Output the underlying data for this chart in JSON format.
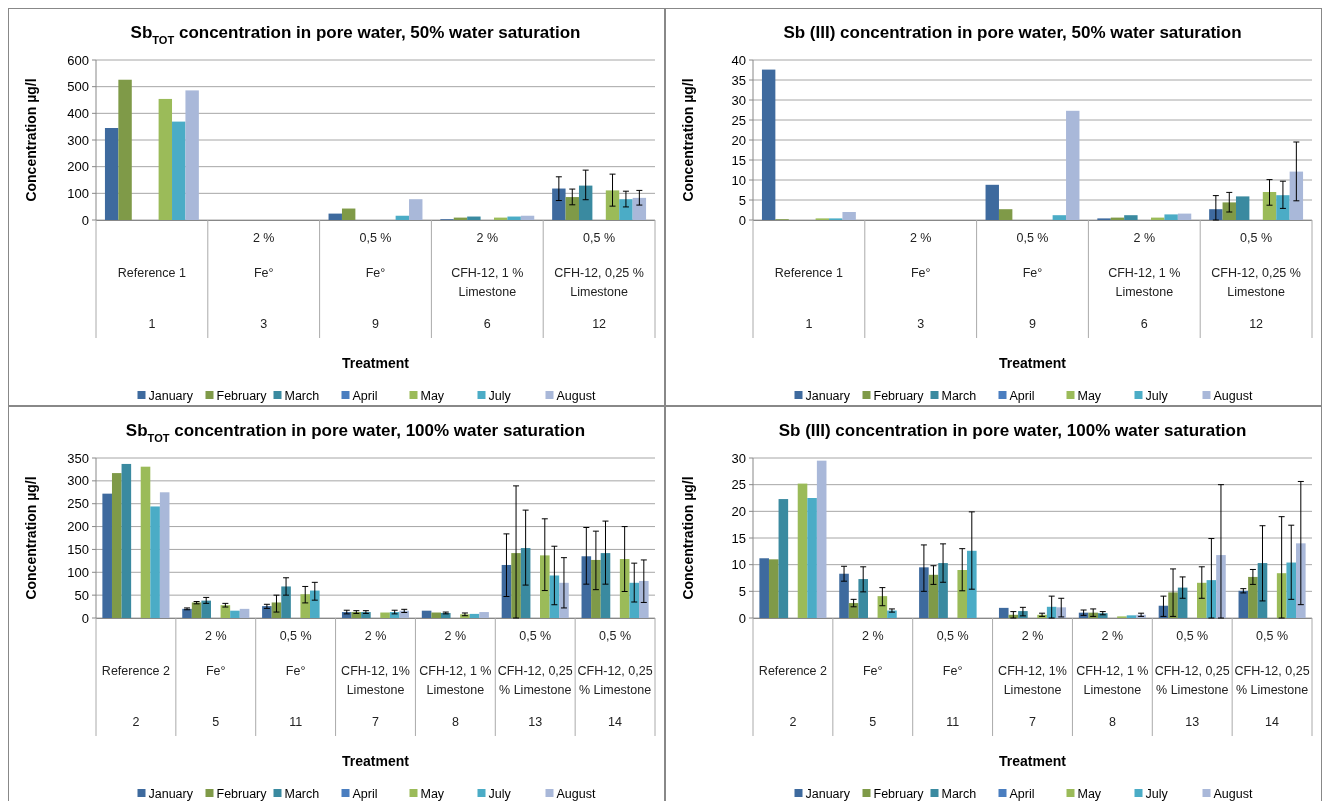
{
  "chart_data": [
    {
      "type": "bar",
      "title": "Sb$_{TOT}$ concentration in pore water, 50% water saturation",
      "xlabel": "Treatment",
      "ylabel": "Concentration µg/l",
      "categories": [
        "Reference 1\n1",
        "2 %\nFe°\n3",
        "0,5 %\nFe°\n9",
        "2 %\nCFH-12, 1 % Limestone\n6",
        "0,5 %\nCFH-12, 0,25 % Limestone\n12"
      ],
      "ylim": [
        0,
        600
      ],
      "yticks": [
        0,
        100,
        200,
        300,
        400,
        500,
        600
      ],
      "grid": "y",
      "legend": "bottom",
      "series": [
        {
          "name": "January",
          "color": "#3e6a9e",
          "values": [
            345,
            null,
            24,
            3,
            118
          ],
          "errors": [
            null,
            null,
            null,
            null,
            [
              73,
              162
            ]
          ]
        },
        {
          "name": "February",
          "color": "#7f9a48",
          "values": [
            526,
            null,
            43,
            9,
            86
          ],
          "errors": [
            null,
            null,
            null,
            null,
            [
              57,
              116
            ]
          ]
        },
        {
          "name": "March",
          "color": "#3a8aa0",
          "values": [
            null,
            null,
            null,
            13,
            129
          ],
          "errors": [
            null,
            null,
            null,
            null,
            [
              76,
              187
            ]
          ]
        },
        {
          "name": "April",
          "color": "#4a7ec0",
          "values": [
            null,
            null,
            null,
            null,
            null
          ]
        },
        {
          "name": "May",
          "color": "#9bbb59",
          "values": [
            454,
            null,
            null,
            9,
            111
          ],
          "errors": [
            null,
            null,
            null,
            null,
            [
              52,
              172
            ]
          ]
        },
        {
          "name": "July",
          "color": "#4bacc6",
          "values": [
            369,
            null,
            16,
            13,
            78
          ],
          "errors": [
            null,
            null,
            null,
            null,
            [
              49,
              108
            ]
          ]
        },
        {
          "name": "August",
          "color": "#a9b8d9",
          "values": [
            486,
            null,
            78,
            16,
            83
          ],
          "errors": [
            null,
            null,
            null,
            null,
            [
              56,
              111
            ]
          ]
        }
      ]
    },
    {
      "type": "bar",
      "title": "Sb (III) concentration in pore water, 50% water saturation",
      "xlabel": "Treatment",
      "ylabel": "Concentration µg/l",
      "categories": [
        "Reference 1\n1",
        "2 %\nFe°\n3",
        "0,5 %\nFe°\n9",
        "2 %\nCFH-12, 1 % Limestone\n6",
        "0,5 %\nCFH-12, 0,25 % Limestone\n12"
      ],
      "ylim": [
        0,
        40
      ],
      "yticks": [
        0,
        5,
        10,
        15,
        20,
        25,
        30,
        35,
        40
      ],
      "grid": "y",
      "legend": "bottom",
      "series": [
        {
          "name": "January",
          "color": "#3e6a9e",
          "values": [
            37.6,
            null,
            8.8,
            0.4,
            2.7
          ],
          "errors": [
            null,
            null,
            null,
            null,
            [
              0,
              6.1
            ]
          ]
        },
        {
          "name": "February",
          "color": "#7f9a48",
          "values": [
            0.2,
            null,
            2.7,
            0.6,
            4.4
          ],
          "errors": [
            null,
            null,
            null,
            null,
            [
              2.0,
              6.9
            ]
          ]
        },
        {
          "name": "March",
          "color": "#3a8aa0",
          "values": [
            null,
            null,
            null,
            1.2,
            5.9
          ]
        },
        {
          "name": "April",
          "color": "#4a7ec0",
          "values": [
            null,
            null,
            null,
            null,
            null
          ]
        },
        {
          "name": "May",
          "color": "#9bbb59",
          "values": [
            0.4,
            null,
            null,
            0.6,
            7.0
          ],
          "errors": [
            null,
            null,
            null,
            null,
            [
              3.7,
              10.1
            ]
          ]
        },
        {
          "name": "July",
          "color": "#4bacc6",
          "values": [
            0.4,
            null,
            1.2,
            1.4,
            6.2
          ],
          "errors": [
            null,
            null,
            null,
            null,
            [
              2.9,
              9.7
            ]
          ]
        },
        {
          "name": "August",
          "color": "#a9b8d9",
          "values": [
            2.0,
            null,
            27.3,
            1.6,
            12.1
          ],
          "errors": [
            null,
            null,
            null,
            null,
            [
              4.8,
              19.5
            ]
          ]
        }
      ]
    },
    {
      "type": "bar",
      "title": "Sb$_{TOT}$ concentration in pore water, 100% water saturation",
      "xlabel": "Treatment",
      "ylabel": "Concentration µg/l",
      "categories": [
        "Reference 2\n2",
        "2 %\nFe°\n5",
        "0,5 %\nFe°\n11",
        "2 %\nCFH-12, 1% Limestone\n7",
        "2 %\nCFH-12, 1 % Limestone\n8",
        "0,5 %\nCFH-12, 0,25 % Limestone\n13",
        "0,5 %\nCFH-12, 0,25 % Limestone\n14"
      ],
      "ylim": [
        0,
        350
      ],
      "yticks": [
        0,
        50,
        100,
        150,
        200,
        250,
        300,
        350
      ],
      "grid": "y",
      "legend": "bottom",
      "series": [
        {
          "name": "January",
          "color": "#3e6a9e",
          "values": [
            272,
            20,
            26,
            13,
            16,
            116,
            135
          ],
          "errors": [
            null,
            [
              18,
              22
            ],
            [
              21,
              30
            ],
            [
              9,
              17
            ],
            null,
            [
              47,
              184
            ],
            [
              74,
              198
            ]
          ]
        },
        {
          "name": "February",
          "color": "#7f9a48",
          "values": [
            317,
            34,
            34,
            13,
            12,
            142,
            127
          ],
          "errors": [
            null,
            [
              31,
              36
            ],
            [
              13,
              50
            ],
            [
              10,
              16
            ],
            null,
            [
              0,
              289
            ],
            [
              62,
              190
            ]
          ]
        },
        {
          "name": "March",
          "color": "#3a8aa0",
          "values": [
            337,
            38,
            69,
            13,
            11,
            153,
            142
          ],
          "errors": [
            null,
            [
              32,
              45
            ],
            [
              50,
              88
            ],
            [
              10,
              16
            ],
            [
              9,
              13
            ],
            [
              72,
              236
            ],
            [
              74,
              212
            ]
          ]
        },
        {
          "name": "April",
          "color": "#4a7ec0",
          "values": [
            null,
            null,
            null,
            null,
            null,
            null,
            null
          ]
        },
        {
          "name": "May",
          "color": "#9bbb59",
          "values": [
            331,
            28,
            52,
            12,
            8,
            137,
            129
          ],
          "errors": [
            null,
            [
              24,
              32
            ],
            [
              33,
              69
            ],
            null,
            [
              5,
              11
            ],
            [
              60,
              217
            ],
            [
              58,
              200
            ]
          ]
        },
        {
          "name": "July",
          "color": "#4bacc6",
          "values": [
            244,
            16,
            60,
            13,
            9,
            93,
            77
          ],
          "errors": [
            null,
            null,
            [
              39,
              78
            ],
            [
              9,
              17
            ],
            null,
            [
              29,
              157
            ],
            [
              35,
              120
            ]
          ]
        },
        {
          "name": "August",
          "color": "#a9b8d9",
          "values": [
            275,
            20,
            null,
            16,
            13,
            77,
            81
          ],
          "errors": [
            null,
            null,
            null,
            [
              12,
              19
            ],
            null,
            [
              22,
              132
            ],
            [
              34,
              127
            ]
          ]
        }
      ]
    },
    {
      "type": "bar",
      "title": "Sb (III) concentration in pore water, 100% water saturation",
      "xlabel": "Treatment",
      "ylabel": "Concentration µg/l",
      "categories": [
        "Reference 2\n2",
        "2 %\nFe°\n5",
        "0,5 %\nFe°\n11",
        "2 %\nCFH-12, 1% Limestone\n7",
        "2 %\nCFH-12, 1 % Limestone\n8",
        "0,5 %\nCFH-12, 0,25 % Limestone\n13",
        "0,5 %\nCFH-12, 0,25 % Limestone\n14"
      ],
      "ylim": [
        0,
        30
      ],
      "yticks": [
        0,
        5,
        10,
        15,
        20,
        25,
        30
      ],
      "grid": "y",
      "legend": "bottom",
      "series": [
        {
          "name": "January",
          "color": "#3e6a9e",
          "values": [
            11.2,
            8.3,
            9.5,
            1.9,
            1.0,
            2.3,
            5.1
          ],
          "errors": [
            null,
            [
              6.9,
              9.7
            ],
            [
              5.0,
              13.7
            ],
            null,
            [
              0.5,
              1.5
            ],
            [
              0.3,
              4.1
            ],
            [
              4.7,
              5.5
            ]
          ]
        },
        {
          "name": "February",
          "color": "#7f9a48",
          "values": [
            11.0,
            2.8,
            8.1,
            0.6,
            1.0,
            4.8,
            7.7
          ],
          "errors": [
            null,
            [
              2.1,
              3.5
            ],
            [
              6.3,
              9.8
            ],
            [
              0,
              1.2
            ],
            [
              0.3,
              1.7
            ],
            [
              0.3,
              9.2
            ],
            [
              6.3,
              9.1
            ]
          ]
        },
        {
          "name": "March",
          "color": "#3a8aa0",
          "values": [
            22.3,
            7.3,
            10.3,
            1.3,
            0.9,
            5.7,
            10.3
          ],
          "errors": [
            null,
            [
              4.9,
              9.6
            ],
            [
              6.7,
              13.9
            ],
            [
              0.4,
              2.0
            ],
            [
              0.6,
              1.2
            ],
            [
              3.7,
              7.7
            ],
            [
              3.2,
              17.3
            ]
          ]
        },
        {
          "name": "April",
          "color": "#4a7ec0",
          "values": [
            null,
            null,
            null,
            null,
            null,
            null,
            null
          ]
        },
        {
          "name": "May",
          "color": "#9bbb59",
          "values": [
            25.2,
            4.1,
            9.0,
            0.6,
            0.3,
            6.6,
            8.4
          ],
          "errors": [
            null,
            [
              2.3,
              5.7
            ],
            [
              5.1,
              13.0
            ],
            [
              0.3,
              0.9
            ],
            null,
            [
              3.7,
              9.6
            ],
            [
              0,
              19.0
            ]
          ]
        },
        {
          "name": "July",
          "color": "#4bacc6",
          "values": [
            22.5,
            1.4,
            12.6,
            2.1,
            0.5,
            7.1,
            10.4
          ],
          "errors": [
            null,
            [
              1.1,
              1.7
            ],
            [
              5.4,
              19.9
            ],
            [
              0,
              4.1
            ],
            null,
            [
              0,
              14.9
            ],
            [
              3.5,
              17.4
            ]
          ]
        },
        {
          "name": "August",
          "color": "#a9b8d9",
          "values": [
            29.5,
            null,
            null,
            2.0,
            0.6,
            11.8,
            14.0
          ],
          "errors": [
            null,
            null,
            null,
            [
              0.2,
              3.7
            ],
            [
              0.3,
              0.9
            ],
            [
              0,
              25.0
            ],
            [
              2.5,
              25.6
            ]
          ]
        }
      ]
    }
  ]
}
